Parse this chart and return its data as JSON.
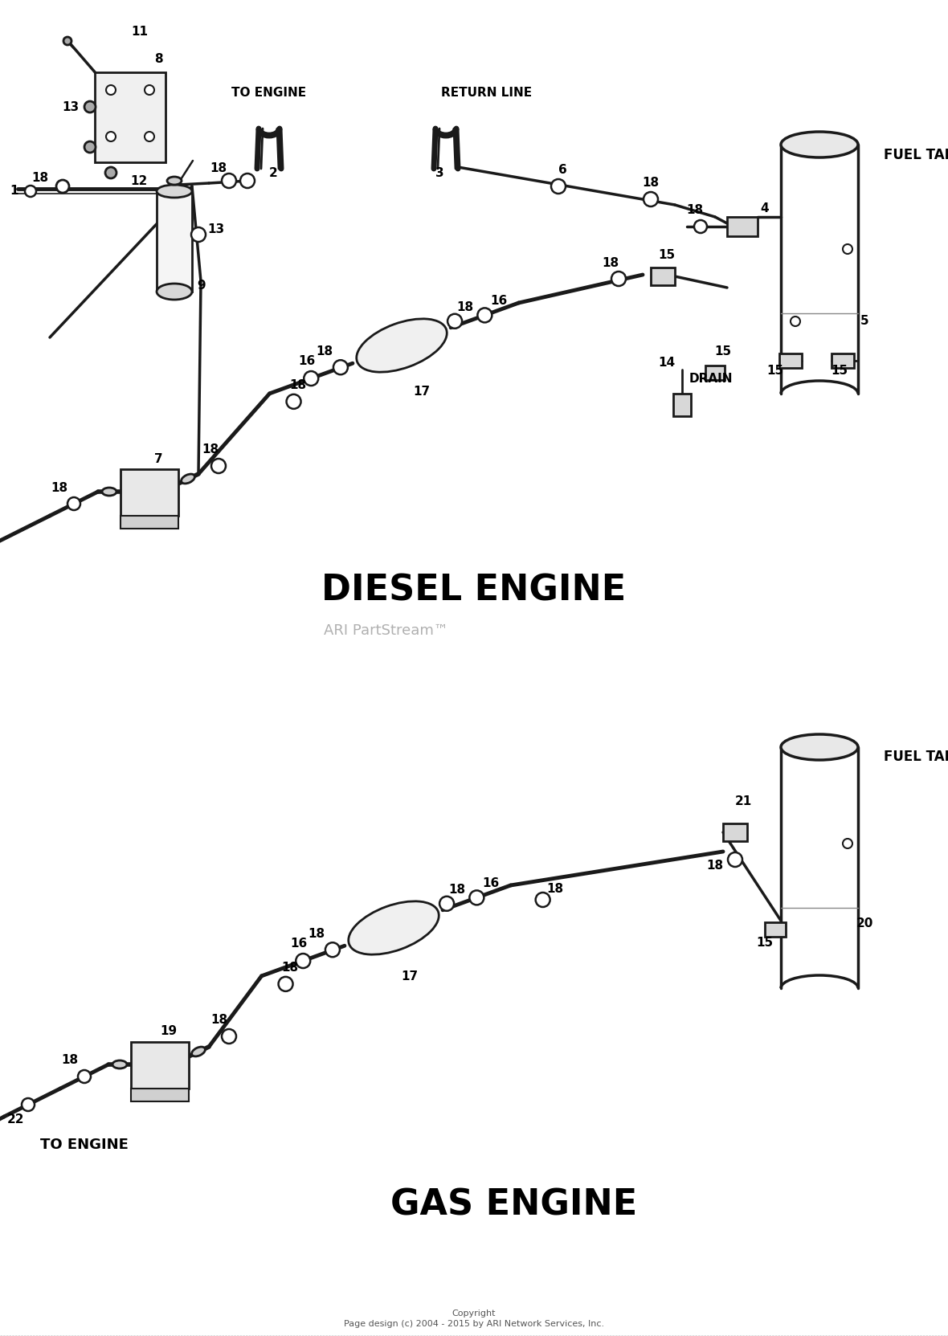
{
  "bg_color": "#ffffff",
  "lc": "#1a1a1a",
  "title_diesel": "DIESEL ENGINE",
  "title_gas": "GAS ENGINE",
  "watermark": "ARI PartStream™",
  "copyright_line1": "Copyright",
  "copyright_line2": "Page design (c) 2004 - 2015 by ARI Network Services, Inc."
}
